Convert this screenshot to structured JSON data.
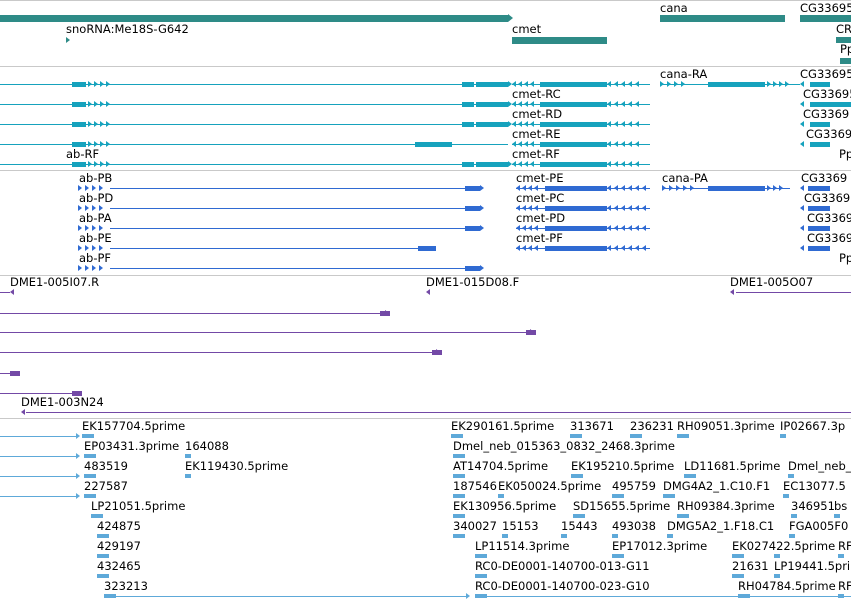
{
  "colors": {
    "gene": "#2e8b87",
    "transcript_teal": "#16a2bd",
    "transcript_blue": "#2f6ad2",
    "clone": "#7349a6",
    "est": "#5ea9d9",
    "divider": "#c9c9c9"
  },
  "tracks": {
    "genes": {
      "labels": [
        "cana",
        "CG33695",
        "snoRNA:Me18S-G642",
        "cmet",
        "CR",
        "Pp"
      ]
    },
    "transcripts_teal": {
      "labels": [
        "cana-RA",
        "CG33695",
        "cmet-RC",
        "CG33695",
        "cmet-RD",
        "CG3369",
        "cmet-RE",
        "CG3369",
        "ab-RF",
        "cmet-RF",
        "Pp"
      ]
    },
    "transcripts_blue": {
      "labels": [
        "ab-PB",
        "cmet-PE",
        "cana-PA",
        "CG3369",
        "ab-PD",
        "cmet-PC",
        "CG3369",
        "ab-PA",
        "cmet-PD",
        "CG3369",
        "ab-PE",
        "cmet-PF",
        "CG3369",
        "ab-PF",
        "Pp"
      ]
    },
    "clones": {
      "labels": [
        "DME1-005I07.R",
        "DME1-015D08.F",
        "DME1-005O07",
        "DME1-003N24"
      ]
    },
    "ests": {
      "labels": [
        "EK157704.5prime",
        "EK290161.5prime",
        "313671",
        "236231",
        "RH09051.3prime",
        "IP02667.3p",
        "EP03431.3prime",
        "164088",
        "Dmel_neb_015363_0832_2468.3prime",
        "483519",
        "EK119430.5prime",
        "AT14704.5prime",
        "EK195210.5prime",
        "LD11681.5prime",
        "Dmel_neb_",
        "227587",
        "187546",
        "EK050024.5prime",
        "495759",
        "DMG4A2_1.C10.F1",
        "EC13077.5",
        "LP21051.5prime",
        "EK130956.5prime",
        "SD15655.5prime",
        "RH09384.3prime",
        "346951",
        "bs",
        "424875",
        "340027",
        "15153",
        "15443",
        "493038",
        "DMG5A2_1.F18.C1",
        "FGA005F0",
        "429197",
        "LP11514.3prime",
        "EP17012.3prime",
        "EK027422.5prime",
        "RF",
        "432465",
        "RC0-DE0001-140700-013-G11",
        "21631",
        "LP19441.5prime",
        "323213",
        "RC0-DE0001-140700-023-G10",
        "RH04784.5prime",
        "RF"
      ]
    }
  }
}
